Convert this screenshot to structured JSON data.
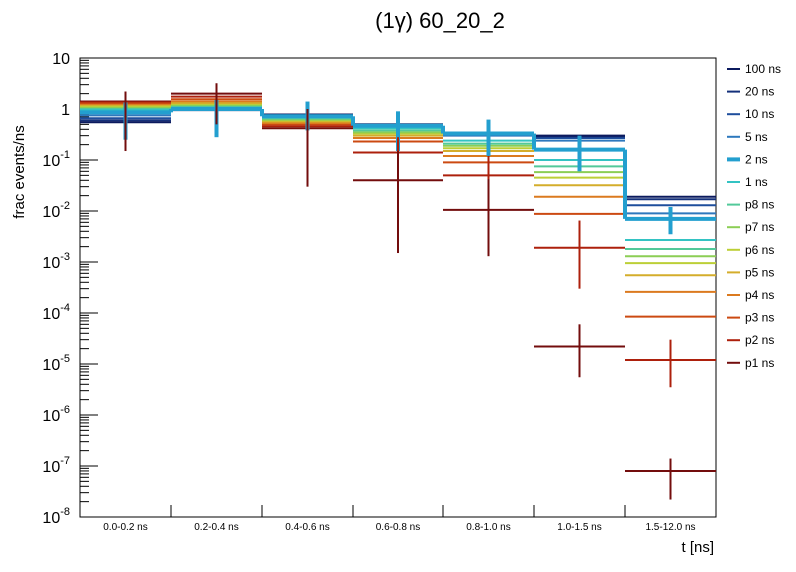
{
  "chart_data": {
    "type": "step-histogram",
    "title": "(1γ) 60_20_2",
    "xlabel": "t [ns]",
    "ylabel": "frac events/ns",
    "yscale": "log",
    "ylim": [
      1e-08,
      10
    ],
    "categories": [
      "0.0-0.2 ns",
      "0.2-0.4 ns",
      "0.4-0.6 ns",
      "0.6-0.8 ns",
      "0.8-1.0 ns",
      "1.0-1.5 ns",
      "1.5-12.0 ns"
    ],
    "y_ticks": [
      {
        "base": "10",
        "exp": "-8",
        "value": 1e-08
      },
      {
        "base": "10",
        "exp": "-7",
        "value": 1e-07
      },
      {
        "base": "10",
        "exp": "-6",
        "value": 1e-06
      },
      {
        "base": "10",
        "exp": "-5",
        "value": 1e-05
      },
      {
        "base": "10",
        "exp": "-4",
        "value": 0.0001
      },
      {
        "base": "10",
        "exp": "-3",
        "value": 0.001
      },
      {
        "base": "10",
        "exp": "-2",
        "value": 0.01
      },
      {
        "base": "10",
        "exp": "-1",
        "value": 0.1
      },
      {
        "base": "1",
        "exp": "",
        "value": 1
      },
      {
        "base": "10",
        "exp": "",
        "value": 10
      }
    ],
    "series": [
      {
        "name": "100 ns",
        "color": "#0b1a5e",
        "width": 2,
        "values": [
          0.55,
          0.95,
          0.78,
          0.5,
          0.34,
          0.3,
          0.019
        ]
      },
      {
        "name": "20 ns",
        "color": "#14307a",
        "width": 2,
        "values": [
          0.6,
          0.97,
          0.77,
          0.5,
          0.33,
          0.29,
          0.017
        ]
      },
      {
        "name": "10 ns",
        "color": "#1e4e9c",
        "width": 2,
        "values": [
          0.66,
          0.98,
          0.76,
          0.49,
          0.32,
          0.27,
          0.013
        ]
      },
      {
        "name": "5 ns",
        "color": "#2d78bd",
        "width": 2,
        "values": [
          0.75,
          0.99,
          0.74,
          0.48,
          0.3,
          0.24,
          0.009
        ]
      },
      {
        "name": "2 ns",
        "color": "#239fcf",
        "width": 4,
        "values": [
          0.86,
          1.0,
          0.72,
          0.47,
          0.33,
          0.16,
          0.007
        ],
        "error_bars": true
      },
      {
        "name": "1 ns",
        "color": "#33c3c3",
        "width": 2,
        "values": [
          0.95,
          1.05,
          0.68,
          0.42,
          0.24,
          0.1,
          0.0027
        ]
      },
      {
        "name": "p8 ns",
        "color": "#52c99a",
        "width": 2,
        "values": [
          1.0,
          1.1,
          0.65,
          0.38,
          0.21,
          0.075,
          0.0018
        ]
      },
      {
        "name": "p7 ns",
        "color": "#8cce55",
        "width": 2,
        "values": [
          1.05,
          1.15,
          0.62,
          0.35,
          0.19,
          0.058,
          0.0013
        ]
      },
      {
        "name": "p6 ns",
        "color": "#bccf36",
        "width": 2,
        "values": [
          1.1,
          1.2,
          0.6,
          0.33,
          0.17,
          0.045,
          0.00095
        ]
      },
      {
        "name": "p5 ns",
        "color": "#d4ad2b",
        "width": 2,
        "values": [
          1.15,
          1.3,
          0.57,
          0.3,
          0.15,
          0.032,
          0.00055
        ]
      },
      {
        "name": "p4 ns",
        "color": "#db7a1f",
        "width": 2,
        "values": [
          1.2,
          1.4,
          0.53,
          0.27,
          0.12,
          0.019,
          0.00026
        ]
      },
      {
        "name": "p3 ns",
        "color": "#cc4a12",
        "width": 2,
        "values": [
          1.28,
          1.55,
          0.5,
          0.23,
          0.09,
          0.0088,
          8.5e-05
        ]
      },
      {
        "name": "p2 ns",
        "color": "#ad200c",
        "width": 2,
        "values": [
          1.35,
          1.75,
          0.46,
          0.14,
          0.05,
          0.0019,
          1.2e-05
        ],
        "error_bars": true
      },
      {
        "name": "p1 ns",
        "color": "#730d0d",
        "width": 2,
        "values": [
          1.4,
          2.0,
          0.42,
          0.04,
          0.0105,
          2.2e-05,
          8e-08
        ],
        "error_bars": true
      }
    ],
    "error_bars": {
      "2 ns": [
        [
          0.25,
          1.35
        ],
        [
          0.28,
          1.5
        ],
        [
          0.38,
          1.4
        ],
        [
          0.15,
          0.9
        ],
        [
          0.12,
          0.62
        ],
        [
          0.06,
          0.3
        ],
        [
          0.0035,
          0.012
        ]
      ],
      "p2 ns": [
        [
          0.5,
          2.2
        ],
        [
          0.8,
          2.5
        ],
        [
          0.2,
          0.8
        ],
        [
          0.05,
          0.28
        ],
        [
          0.015,
          0.12
        ],
        [
          0.0003,
          0.0065
        ],
        [
          3.5e-06,
          3e-05
        ]
      ],
      "p1 ns": [
        [
          0.15,
          2.2
        ],
        [
          0.5,
          3.2
        ],
        [
          0.03,
          1.0
        ],
        [
          0.0015,
          0.15
        ],
        [
          0.0013,
          0.042
        ],
        [
          5.5e-06,
          6e-05
        ],
        [
          2.2e-08,
          1.4e-07
        ]
      ]
    },
    "legend_position": "right"
  }
}
